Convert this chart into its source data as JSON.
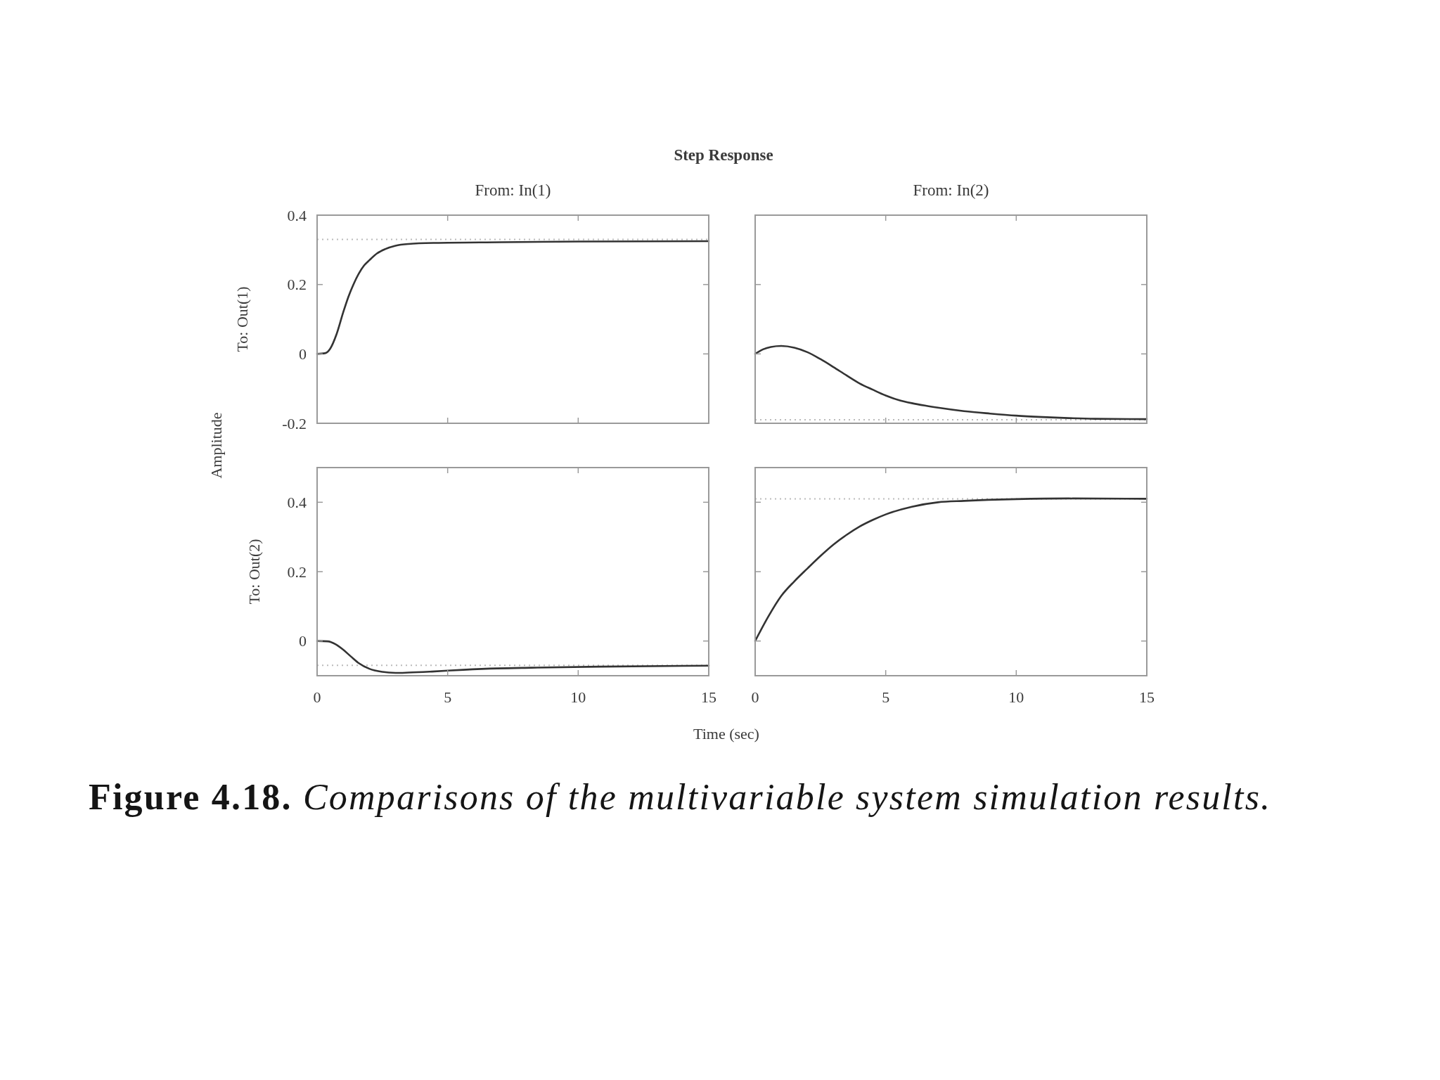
{
  "chart_data": [
    {
      "type": "line",
      "title": "Step Response",
      "subtitle": "From: In(1)",
      "ylabel": "To: Out(1)",
      "annotations": [
        "Amplitude"
      ],
      "x": [
        0,
        0.3,
        0.5,
        0.75,
        1,
        1.2,
        1.39,
        1.6,
        1.8,
        2,
        2.3,
        2.6,
        3,
        3.5,
        4.5,
        7,
        10,
        15
      ],
      "values": [
        0,
        0.002,
        0.015,
        0.058,
        0.12,
        0.165,
        0.2,
        0.232,
        0.255,
        0.27,
        0.29,
        0.302,
        0.312,
        0.317,
        0.32,
        0.322,
        0.324,
        0.325
      ],
      "color": "#333333",
      "xlim": [
        0,
        15
      ],
      "ylim": [
        -0.2,
        0.4
      ],
      "xticks": [
        0,
        5,
        10,
        15
      ],
      "yticks": [
        -0.2,
        0,
        0.2,
        0.4
      ],
      "tick_labels": "y",
      "ref_lines": [
        {
          "axis": "y",
          "value": 0.33,
          "color": "#bbbbbb",
          "line_style": "dotted"
        }
      ]
    },
    {
      "type": "line",
      "subtitle": "From: In(2)",
      "x": [
        0,
        0.3,
        0.6,
        1,
        1.5,
        2,
        2.5,
        3,
        3.5,
        4,
        4.5,
        5,
        5.5,
        6,
        6.5,
        7,
        8,
        9,
        10,
        11,
        12,
        13,
        15
      ],
      "values": [
        0,
        0.013,
        0.02,
        0.023,
        0.018,
        0.005,
        -0.015,
        -0.038,
        -0.062,
        -0.085,
        -0.103,
        -0.12,
        -0.133,
        -0.142,
        -0.149,
        -0.155,
        -0.165,
        -0.172,
        -0.178,
        -0.182,
        -0.185,
        -0.187,
        -0.188
      ],
      "color": "#333333",
      "xlim": [
        0,
        15
      ],
      "ylim": [
        -0.2,
        0.4
      ],
      "xticks": [
        0,
        5,
        10,
        15
      ],
      "yticks": [
        -0.2,
        0,
        0.2,
        0.4
      ],
      "tick_labels": false,
      "ref_lines": [
        {
          "axis": "y",
          "value": -0.19,
          "color": "#bbbbbb",
          "line_style": "dotted"
        }
      ]
    },
    {
      "type": "line",
      "ylabel": "To: Out(2)",
      "xlabel": "Time (sec)",
      "annotations": [
        "Figure 4.18.",
        "Comparisons of the multivariable system simulation results."
      ],
      "x": [
        0,
        0.4,
        0.7,
        1,
        1.3,
        1.6,
        2,
        2.5,
        3,
        3.5,
        4.4,
        5.6,
        6.9,
        8.2,
        10.8,
        15
      ],
      "values": [
        0,
        -0.001,
        -0.009,
        -0.025,
        -0.045,
        -0.064,
        -0.08,
        -0.089,
        -0.092,
        -0.091,
        -0.088,
        -0.083,
        -0.079,
        -0.077,
        -0.074,
        -0.071
      ],
      "color": "#333333",
      "xlim": [
        0,
        15
      ],
      "ylim": [
        -0.1,
        0.5
      ],
      "xticks": [
        0,
        5,
        10,
        15
      ],
      "yticks": [
        0,
        0.2,
        0.4
      ],
      "ref_lines": [
        {
          "axis": "y",
          "value": -0.07,
          "color": "#bbbbbb",
          "line_style": "dotted"
        }
      ]
    },
    {
      "type": "line",
      "x": [
        0,
        0.5,
        1,
        1.5,
        2,
        2.5,
        3,
        3.5,
        4,
        4.5,
        5,
        6,
        7,
        8,
        10,
        12,
        15
      ],
      "values": [
        0,
        0.07,
        0.13,
        0.172,
        0.209,
        0.245,
        0.278,
        0.306,
        0.33,
        0.349,
        0.365,
        0.387,
        0.4,
        0.404,
        0.409,
        0.411,
        0.41
      ],
      "color": "#333333",
      "xlim": [
        0,
        15
      ],
      "ylim": [
        -0.1,
        0.5
      ],
      "xticks": [
        0,
        5,
        10,
        15
      ],
      "yticks": [
        0,
        0.2,
        0.4
      ],
      "tick_labels": "x",
      "ref_lines": [
        {
          "axis": "y",
          "value": 0.41,
          "color": "#bbbbbb",
          "line_style": "dotted"
        }
      ]
    }
  ]
}
